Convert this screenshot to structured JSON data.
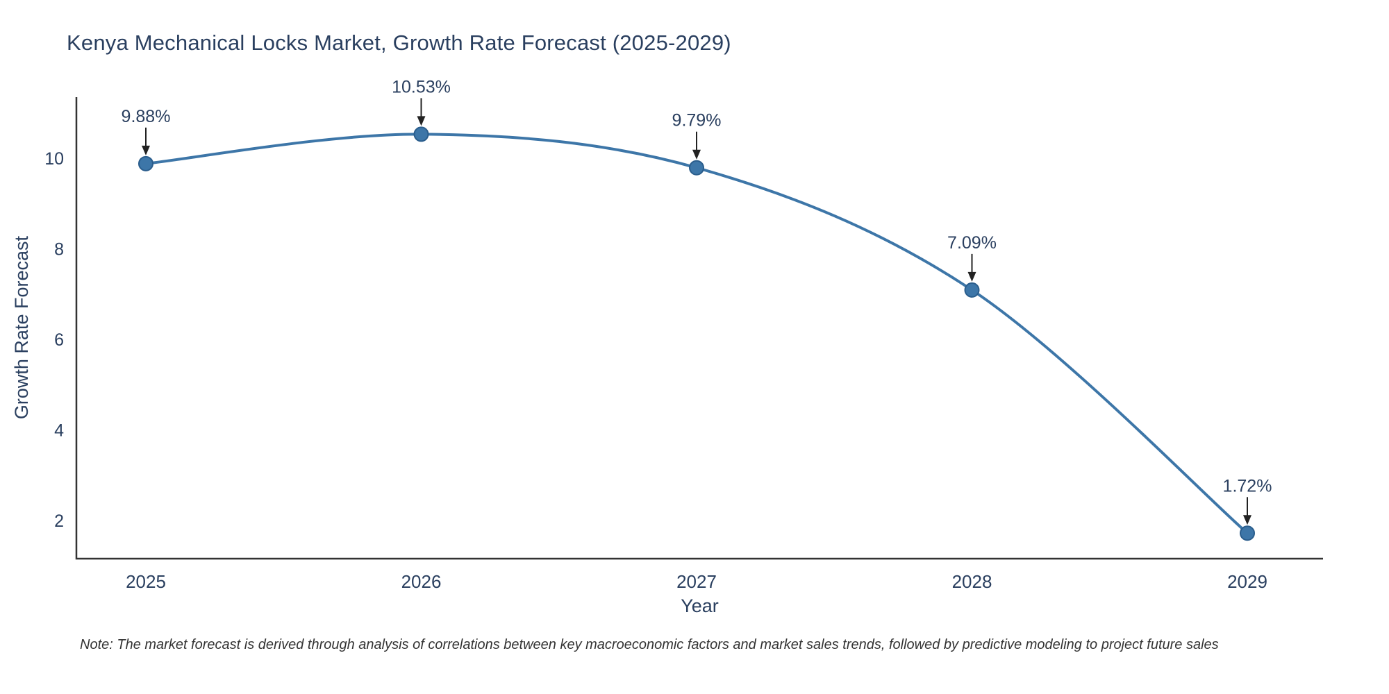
{
  "chart_data": {
    "type": "line",
    "title": "Kenya Mechanical Locks Market, Growth Rate Forecast (2025-2029)",
    "xlabel": "Year",
    "ylabel": "Growth Rate Forecast",
    "categories": [
      "2025",
      "2026",
      "2027",
      "2028",
      "2029"
    ],
    "values": [
      9.88,
      10.53,
      9.79,
      7.09,
      1.72
    ],
    "point_labels": [
      "9.88%",
      "10.53%",
      "9.79%",
      "7.09%",
      "1.72%"
    ],
    "yticks": [
      2,
      4,
      6,
      8,
      10
    ],
    "ylim": [
      1.15,
      11.35
    ],
    "grid": false,
    "legend": "none",
    "line_shape": "spline",
    "colors": {
      "line": "#3d76a8",
      "marker": "#3d76a8",
      "marker_edge": "#2a5d8c",
      "text": "#2a3f5f",
      "axis": "#333333",
      "arrow": "#222222"
    }
  },
  "note": "Note: The market forecast is derived through analysis of correlations between key macroeconomic factors and market sales trends, followed by predictive modeling to project future sales"
}
